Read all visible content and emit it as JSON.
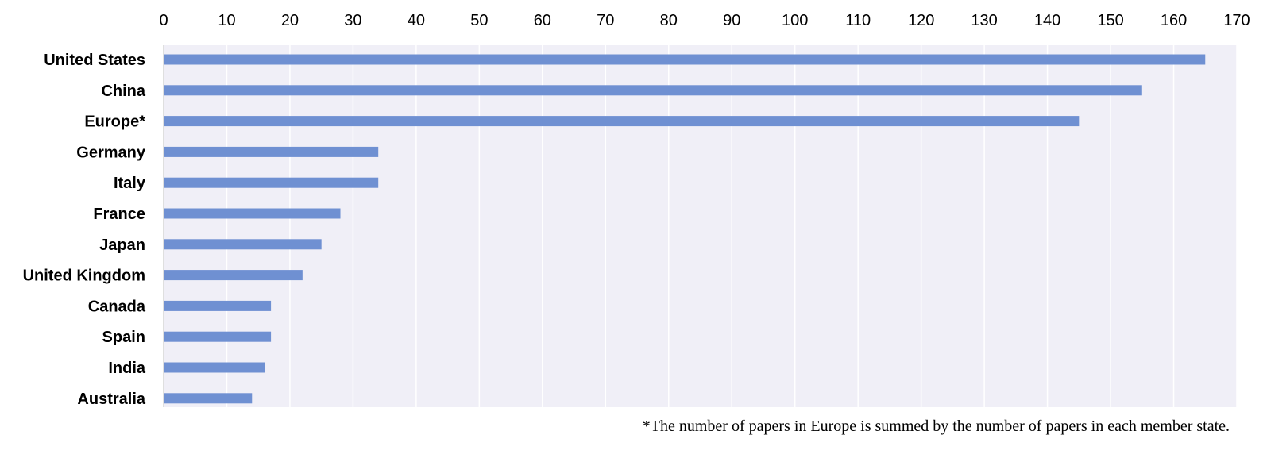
{
  "chart_data": {
    "type": "bar",
    "orientation": "horizontal",
    "title": "",
    "xlabel": "",
    "ylabel": "",
    "categories": [
      "United States",
      "China",
      "Europe*",
      "Germany",
      "Italy",
      "France",
      "Japan",
      "United Kingdom",
      "Canada",
      "Spain",
      "India",
      "Australia"
    ],
    "values": [
      165,
      155,
      145,
      34,
      34,
      28,
      25,
      22,
      17,
      17,
      16,
      14
    ],
    "xlim": [
      0,
      170
    ],
    "x_ticks": [
      0,
      10,
      20,
      30,
      40,
      50,
      60,
      70,
      80,
      90,
      100,
      110,
      120,
      130,
      140,
      150,
      160,
      170
    ],
    "x_axis_position": "top",
    "grid": "vertical",
    "bar_color": "#6f90d2",
    "plot_background": "#f0eff7",
    "footnote": "*The number of papers in Europe is summed by the number of papers in each member state."
  }
}
